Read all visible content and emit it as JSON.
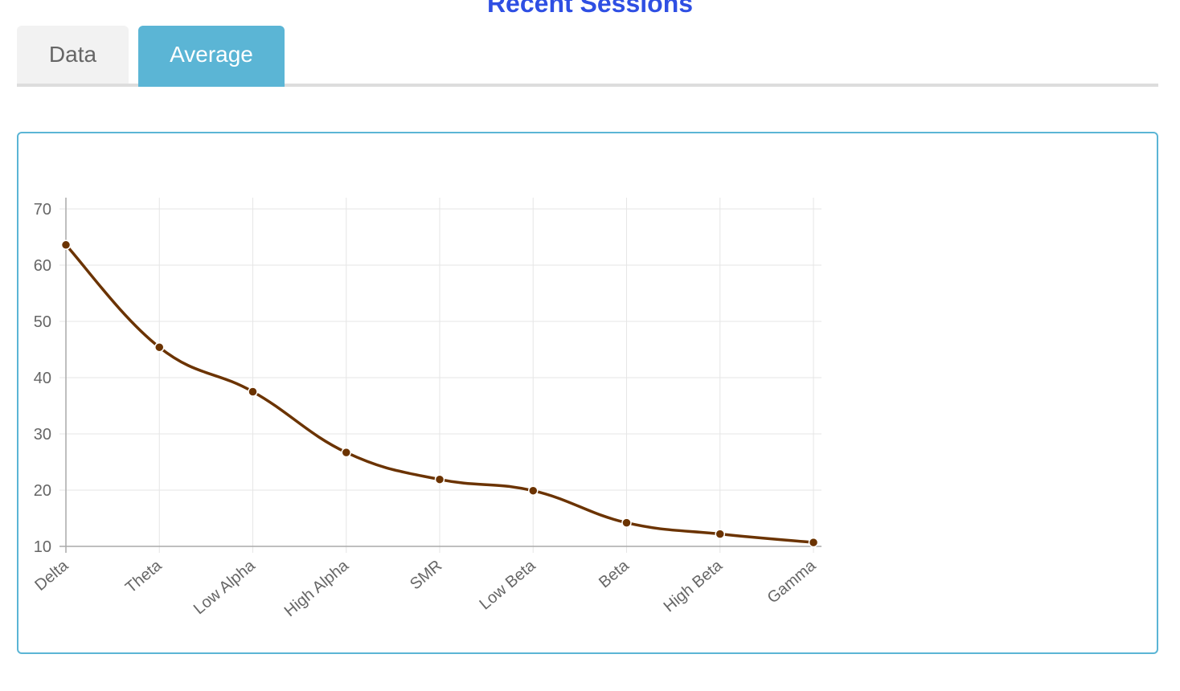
{
  "header": {
    "title": "Recent Sessions"
  },
  "tabs": [
    {
      "label": "Data",
      "active": false
    },
    {
      "label": "Average",
      "active": true
    }
  ],
  "colors": {
    "accent": "#5bb5d5",
    "title": "#2f4fe3",
    "line": "#6b3300",
    "grid": "#e6e6e6"
  },
  "chart_data": {
    "type": "line",
    "title": "",
    "xlabel": "",
    "ylabel": "",
    "categories": [
      "Delta",
      "Theta",
      "Low Alpha",
      "High Alpha",
      "SMR",
      "Low Beta",
      "Beta",
      "High Beta",
      "Gamma"
    ],
    "series": [
      {
        "values": [
          63.6,
          45.4,
          37.5,
          26.7,
          21.9,
          19.9,
          14.2,
          12.2,
          10.7
        ]
      }
    ],
    "ylim": [
      10,
      70
    ],
    "yticks": [
      70,
      60,
      50,
      40,
      30,
      20,
      10
    ],
    "grid": true,
    "smooth": true
  }
}
